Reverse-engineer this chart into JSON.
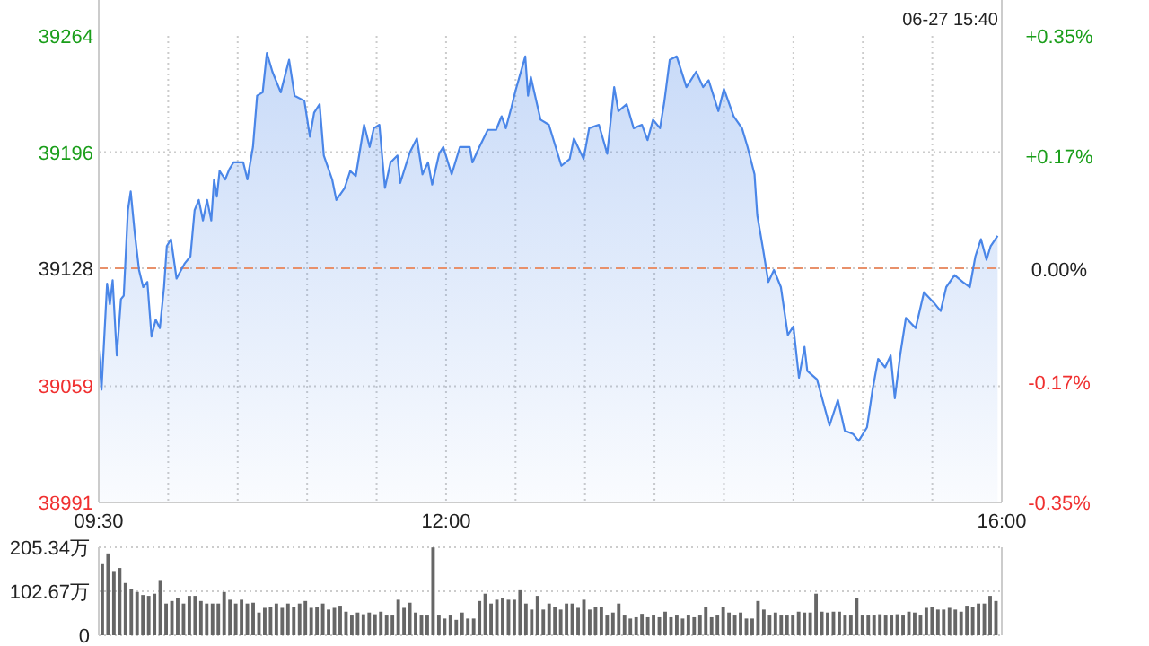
{
  "chart_data": [
    {
      "type": "area",
      "subtitle": "06-27 15:40",
      "color": "#4a86e8",
      "x": [
        9.5,
        9.52,
        9.56,
        9.58,
        9.6,
        9.63,
        9.66,
        9.68,
        9.71,
        9.73,
        9.76,
        9.79,
        9.82,
        9.85,
        9.88,
        9.91,
        9.94,
        9.97,
        9.99,
        10.02,
        10.06,
        10.12,
        10.16,
        10.19,
        10.22,
        10.25,
        10.28,
        10.31,
        10.33,
        10.35,
        10.37,
        10.41,
        10.44,
        10.47,
        10.54,
        10.57,
        10.61,
        10.64,
        10.68,
        10.71,
        10.75,
        10.81,
        10.87,
        10.91,
        10.98,
        11.02,
        11.05,
        11.09,
        11.12,
        11.18,
        11.21,
        11.27,
        11.31,
        11.35,
        11.41,
        11.45,
        11.48,
        11.52,
        11.56,
        11.6,
        11.65,
        11.67,
        11.74,
        11.79,
        11.83,
        11.87,
        11.9,
        11.95,
        11.98,
        12.04,
        12.1,
        12.17,
        12.19,
        12.24,
        12.3,
        12.36,
        12.4,
        12.43,
        12.47,
        12.5,
        12.57,
        12.59,
        12.61,
        12.68,
        12.74,
        12.83,
        12.89,
        12.92,
        12.99,
        13.03,
        13.1,
        13.16,
        13.21,
        13.24,
        13.3,
        13.35,
        13.41,
        13.45,
        13.49,
        13.54,
        13.57,
        13.61,
        13.66,
        13.73,
        13.8,
        13.85,
        13.89,
        13.96,
        14.0,
        14.07,
        14.13,
        14.17,
        14.22,
        14.24,
        14.28,
        14.32,
        14.36,
        14.41,
        14.46,
        14.5,
        14.54,
        14.58,
        14.6,
        14.67,
        14.71,
        14.76,
        14.82,
        14.87,
        14.93,
        14.97,
        15.03,
        15.07,
        15.11,
        15.16,
        15.2,
        15.23,
        15.27,
        15.31,
        15.38,
        15.44,
        15.51,
        15.56,
        15.6,
        15.66,
        15.72,
        15.77,
        15.81,
        15.85,
        15.89,
        15.92,
        15.97
      ],
      "values": [
        39080,
        39057,
        39119,
        39107,
        39121,
        39077,
        39110,
        39112,
        39162,
        39173,
        39148,
        39127,
        39117,
        39120,
        39088,
        39098,
        39093,
        39117,
        39141,
        39145,
        39122,
        39131,
        39135,
        39162,
        39168,
        39156,
        39168,
        39156,
        39180,
        39170,
        39185,
        39180,
        39186,
        39190,
        39190,
        39180,
        39199,
        39229,
        39231,
        39254,
        39243,
        39231,
        39250,
        39229,
        39226,
        39205,
        39219,
        39224,
        39194,
        39180,
        39168,
        39175,
        39185,
        39182,
        39212,
        39199,
        39210,
        39212,
        39175,
        39190,
        39194,
        39178,
        39196,
        39204,
        39183,
        39190,
        39177,
        39195,
        39199,
        39183,
        39199,
        39199,
        39190,
        39199,
        39209,
        39209,
        39217,
        39210,
        39222,
        39232,
        39252,
        39229,
        39240,
        39215,
        39212,
        39188,
        39192,
        39204,
        39192,
        39210,
        39212,
        39195,
        39234,
        39220,
        39224,
        39210,
        39212,
        39203,
        39215,
        39210,
        39225,
        39250,
        39252,
        39234,
        39243,
        39234,
        39238,
        39220,
        39233,
        39217,
        39210,
        39199,
        39183,
        39159,
        39140,
        39120,
        39127,
        39117,
        39089,
        39094,
        39064,
        39082,
        39068,
        39063,
        39051,
        39036,
        39051,
        39033,
        39031,
        39027,
        39035,
        39057,
        39075,
        39070,
        39077,
        39052,
        39078,
        39099,
        39093,
        39114,
        39108,
        39103,
        39117,
        39124,
        39120,
        39117,
        39135,
        39145,
        39133,
        39141,
        39147
      ],
      "xlim": [
        9.5,
        16
      ],
      "xticks": [
        {
          "value": 9.5,
          "label": "09:30"
        },
        {
          "value": 10,
          "label": null
        },
        {
          "value": 10.5,
          "label": null
        },
        {
          "value": 11,
          "label": null
        },
        {
          "value": 11.5,
          "label": null
        },
        {
          "value": 12,
          "label": "12:00"
        },
        {
          "value": 12.5,
          "label": null
        },
        {
          "value": 13,
          "label": null
        },
        {
          "value": 13.5,
          "label": null
        },
        {
          "value": 14,
          "label": null
        },
        {
          "value": 14.5,
          "label": null
        },
        {
          "value": 15,
          "label": null
        },
        {
          "value": 15.5,
          "label": null
        },
        {
          "value": 16,
          "label": "16:00"
        }
      ],
      "ylim": [
        38991,
        39264
      ],
      "yticks": [
        38991,
        39059,
        39128,
        39196,
        39264
      ],
      "y2lim": [
        -0.35,
        0.35
      ],
      "y2ticks": [
        {
          "value": -0.35,
          "label": "-0.35%"
        },
        {
          "value": -0.17,
          "label": "-0.17%"
        },
        {
          "value": 0,
          "label": "0.00%"
        },
        {
          "value": 0.17,
          "label": "+0.17%"
        },
        {
          "value": 0.35,
          "label": "+0.35%"
        }
      ],
      "ref_lines": [
        {
          "axis": "y",
          "value": 39128,
          "color": "#e8906a",
          "line_style": "dashed"
        }
      ],
      "grid": true
    },
    {
      "type": "bar",
      "color": "#666666",
      "tick_labels": "y",
      "grid": "y",
      "categories": [
        null,
        null,
        null,
        null,
        null,
        null,
        null,
        null,
        null,
        null,
        null,
        null,
        null,
        null,
        null,
        null,
        null,
        null,
        null,
        null,
        null,
        null,
        null,
        null,
        null,
        null,
        null,
        null,
        null,
        null,
        null,
        null,
        null,
        null,
        null,
        null,
        null,
        null,
        null,
        null,
        null,
        null,
        null,
        null,
        null,
        null,
        null,
        null,
        null,
        null,
        null,
        null,
        null,
        null,
        null,
        null,
        null,
        null,
        null,
        null,
        null,
        null,
        null,
        null,
        null,
        null,
        null,
        null,
        null,
        null,
        null,
        null,
        null,
        null,
        null,
        null,
        null,
        null,
        null,
        null,
        null,
        null,
        null,
        null,
        null,
        null,
        null,
        null,
        null,
        null,
        null,
        null,
        null,
        null,
        null,
        null,
        null,
        null,
        null,
        null,
        null,
        null,
        null,
        null,
        null,
        null,
        null,
        null,
        null,
        null,
        null,
        null,
        null,
        null,
        null,
        null,
        null,
        null,
        null,
        null,
        null,
        null,
        null,
        null,
        null,
        null,
        null,
        null,
        null,
        null,
        null,
        null,
        null,
        null,
        null,
        null,
        null,
        null,
        null,
        null,
        null,
        null,
        null,
        null,
        null,
        null,
        null,
        null,
        null,
        null,
        null,
        null,
        null,
        null,
        null
      ],
      "values": [
        166,
        191,
        150,
        157,
        122,
        108,
        101,
        94,
        92,
        97,
        129,
        74,
        80,
        87,
        74,
        92,
        92,
        80,
        74,
        74,
        74,
        101,
        83,
        74,
        83,
        74,
        76,
        53,
        64,
        67,
        74,
        64,
        74,
        67,
        74,
        80,
        64,
        67,
        74,
        60,
        64,
        69,
        55,
        46,
        53,
        49,
        53,
        49,
        55,
        46,
        46,
        83,
        64,
        76,
        53,
        46,
        46,
        205,
        46,
        39,
        46,
        36,
        53,
        39,
        39,
        80,
        97,
        74,
        83,
        87,
        83,
        83,
        105,
        74,
        60,
        92,
        60,
        74,
        67,
        60,
        74,
        74,
        64,
        83,
        60,
        67,
        67,
        46,
        53,
        74,
        46,
        39,
        42,
        50,
        42,
        46,
        42,
        55,
        42,
        46,
        39,
        46,
        42,
        46,
        67,
        42,
        46,
        67,
        53,
        46,
        53,
        39,
        39,
        80,
        60,
        46,
        53,
        46,
        46,
        46,
        55,
        53,
        53,
        97,
        55,
        53,
        55,
        55,
        46,
        46,
        86,
        46,
        46,
        46,
        49,
        46,
        46,
        49,
        46,
        55,
        53,
        46,
        64,
        67,
        60,
        60,
        64,
        60,
        55,
        69,
        67,
        74,
        74,
        92,
        80
      ],
      "ylim": [
        0,
        205.34
      ],
      "yticks": [
        0,
        {
          "value": 102.67,
          "label": "102.67万"
        },
        {
          "value": 205.34,
          "label": "205.34万"
        }
      ]
    }
  ]
}
